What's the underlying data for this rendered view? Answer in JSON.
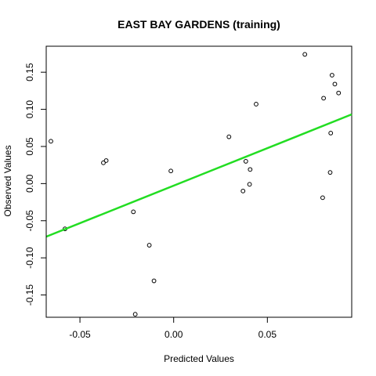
{
  "chart_data": {
    "type": "scatter",
    "title": "EAST BAY GARDENS (training)",
    "xlabel": "Predicted Values",
    "ylabel": "Observed Values",
    "xlim": [
      -0.068,
      0.095
    ],
    "ylim": [
      -0.18,
      0.185
    ],
    "x_ticks": [
      {
        "value": -0.05,
        "label": "-0.05"
      },
      {
        "value": 0.0,
        "label": "0.00"
      },
      {
        "value": 0.05,
        "label": "0.05"
      }
    ],
    "y_ticks": [
      {
        "value": -0.15,
        "label": "-0.15"
      },
      {
        "value": -0.1,
        "label": "-0.10"
      },
      {
        "value": -0.05,
        "label": "-0.05"
      },
      {
        "value": 0.0,
        "label": "0.00"
      },
      {
        "value": 0.05,
        "label": "0.05"
      },
      {
        "value": 0.1,
        "label": "0.10"
      },
      {
        "value": 0.15,
        "label": "0.15"
      }
    ],
    "grid": false,
    "points": [
      {
        "x": -0.0655,
        "y": 0.057
      },
      {
        "x": -0.058,
        "y": -0.061
      },
      {
        "x": -0.0375,
        "y": 0.028
      },
      {
        "x": -0.036,
        "y": 0.031
      },
      {
        "x": -0.0215,
        "y": -0.038
      },
      {
        "x": -0.0205,
        "y": -0.176
      },
      {
        "x": -0.013,
        "y": -0.083
      },
      {
        "x": -0.0105,
        "y": -0.131
      },
      {
        "x": -0.0015,
        "y": 0.017
      },
      {
        "x": 0.0295,
        "y": 0.063
      },
      {
        "x": 0.037,
        "y": -0.01
      },
      {
        "x": 0.0385,
        "y": 0.03
      },
      {
        "x": 0.0405,
        "y": -0.001
      },
      {
        "x": 0.0408,
        "y": 0.019
      },
      {
        "x": 0.044,
        "y": 0.107
      },
      {
        "x": 0.07,
        "y": 0.174
      },
      {
        "x": 0.0795,
        "y": -0.019
      },
      {
        "x": 0.08,
        "y": 0.115
      },
      {
        "x": 0.0835,
        "y": 0.015
      },
      {
        "x": 0.0838,
        "y": 0.068
      },
      {
        "x": 0.0845,
        "y": 0.146
      },
      {
        "x": 0.086,
        "y": 0.134
      },
      {
        "x": 0.088,
        "y": 0.122
      }
    ],
    "fit_line": {
      "color": "#22dd22",
      "start": {
        "x": -0.068,
        "y": -0.0715
      },
      "end": {
        "x": 0.095,
        "y": 0.0932
      }
    },
    "point_color": "#000000"
  }
}
